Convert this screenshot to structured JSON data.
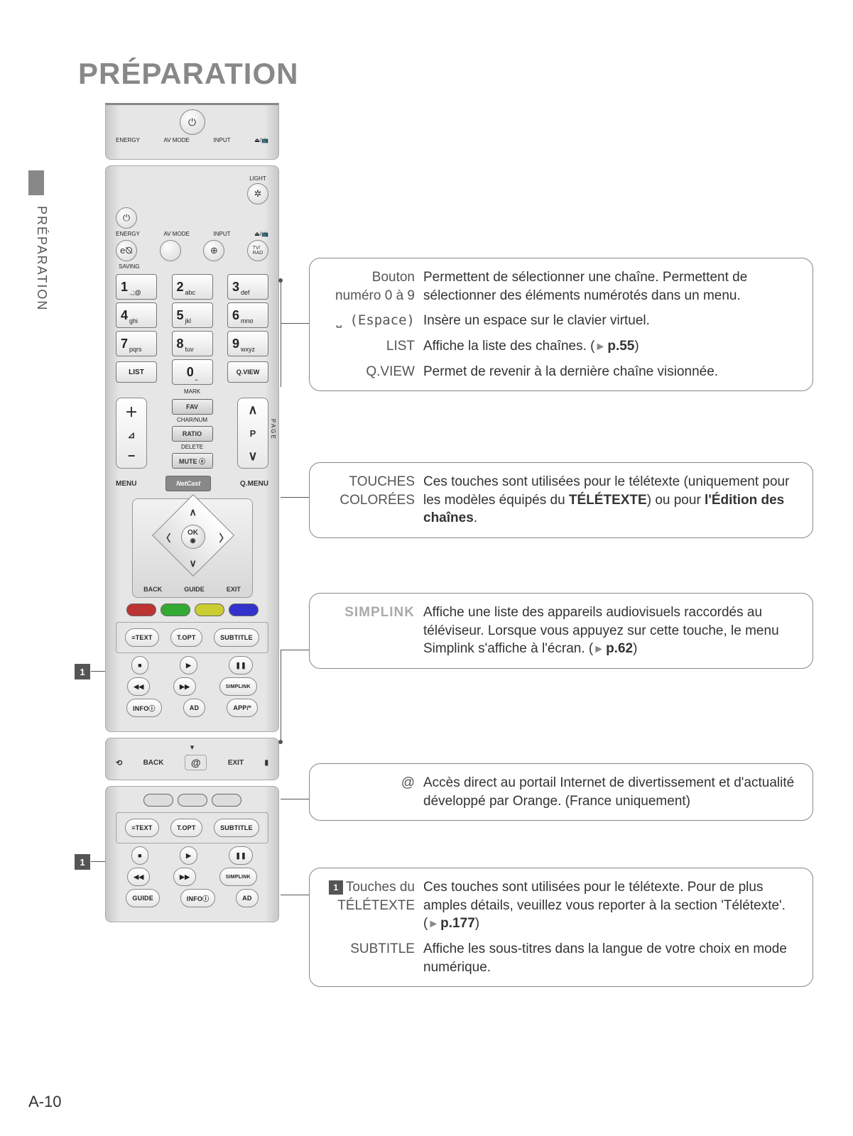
{
  "page": {
    "title": "PRÉPARATION",
    "side_label": "PRÉPARATION",
    "number": "A-10"
  },
  "remote_top": {
    "labels": [
      "ENERGY",
      "AV MODE",
      "INPUT",
      "⏏/📺"
    ]
  },
  "remote_main": {
    "light": "LIGHT",
    "row1_labels": [
      "ENERGY",
      "AV MODE",
      "INPUT",
      "⏏/📺"
    ],
    "row2_labels": [
      "SAVING",
      "",
      "",
      "TV/\nRAD"
    ],
    "keypad": [
      {
        "n": "1",
        "s": ".,;@"
      },
      {
        "n": "2",
        "s": "abc"
      },
      {
        "n": "3",
        "s": "def"
      },
      {
        "n": "4",
        "s": "ghi"
      },
      {
        "n": "5",
        "s": "jkl"
      },
      {
        "n": "6",
        "s": "mno"
      },
      {
        "n": "7",
        "s": "pqrs"
      },
      {
        "n": "8",
        "s": "tuv"
      },
      {
        "n": "9",
        "s": "wxyz"
      }
    ],
    "list": "LIST",
    "zero_sub": "⎵",
    "qview": "Q.VIEW",
    "mark": "MARK",
    "fav": "FAV",
    "charnum": "CHAR/NUM",
    "ratio": "RATIO",
    "delete": "DELETE",
    "mute": "MUTE ⓧ",
    "p_label": "P",
    "page_side": "PAGE",
    "menu": "MENU",
    "netcast": "NetCast",
    "qmenu": "Q.MENU",
    "ok": "OK",
    "back": "BACK",
    "guide": "GUIDE",
    "exit": "EXIT",
    "text": "≡TEXT",
    "topt": "T.OPT",
    "subtitle": "SUBTITLE",
    "stop": "■",
    "play": "▶",
    "pause": "❚❚",
    "rew": "◀◀",
    "ff": "▶▶",
    "simplink": "SIMPLINK",
    "info": "INFOⓘ",
    "ad": "AD",
    "app": "APP/*"
  },
  "remote_mid": {
    "back": "BACK",
    "at": "@",
    "exit": "EXIT"
  },
  "remote_bot": {
    "text": "≡TEXT",
    "topt": "T.OPT",
    "subtitle": "SUBTITLE",
    "stop": "■",
    "play": "▶",
    "pause": "❚❚",
    "rew": "◀◀",
    "ff": "▶▶",
    "simplink": "SIMPLINK",
    "guide": "GUIDE",
    "info": "INFOⓘ",
    "ad": "AD"
  },
  "callouts": {
    "c1": {
      "r1_key": "Bouton numéro 0 à 9",
      "r1_val": "Permettent de sélectionner une chaîne. Permettent de sélectionner des éléments numérotés dans un menu.",
      "r2_key": "⎵ (Espace)",
      "r2_val": "Insère un espace sur le clavier virtuel.",
      "r3_key": "LIST",
      "r3_val_a": "Affiche la liste des chaînes. (",
      "r3_ref": "p.55",
      "r3_val_b": ")",
      "r4_key": "Q.VIEW",
      "r4_val": "Permet de revenir à la dernière chaîne visionnée."
    },
    "c2": {
      "key": "TOUCHES COLORÉES",
      "val_a": "Ces touches sont utilisées pour le télétexte (uniquement pour les modèles équipés du ",
      "val_b": "TÉLÉTEXTE",
      "val_c": ") ou pour ",
      "val_d": "l'Édition des chaînes",
      "val_e": "."
    },
    "c3": {
      "key": "SIMPLINK",
      "val_a": "Affiche une liste des appareils audiovisuels raccordés au téléviseur. Lorsque vous appuyez sur cette touche, le menu Simplink s'affiche à l'écran. (",
      "ref": "p.62",
      "val_b": ")"
    },
    "c4": {
      "key": "@",
      "val": "Accès direct au portail Internet de divertissement et d'actualité développé par Orange. (France uniquement)"
    },
    "c5": {
      "r1_key": "Touches du TÉLÉTEXTE",
      "r1_val_a": "Ces touches sont utilisées pour le télétexte. Pour de plus amples détails, veuillez vous reporter à la section 'Télétexte'.(",
      "r1_ref": "p.177",
      "r1_val_b": ")",
      "r2_key": "SUBTITLE",
      "r2_val": "Affiche les sous-titres dans la langue de votre choix en mode numérique."
    }
  },
  "markers": {
    "m1": "1",
    "m2": "1",
    "m5": "1"
  },
  "style": {
    "title_color": "#888888",
    "callout_border": "#888888",
    "text_color": "#333333",
    "marker_bg": "#555555"
  }
}
